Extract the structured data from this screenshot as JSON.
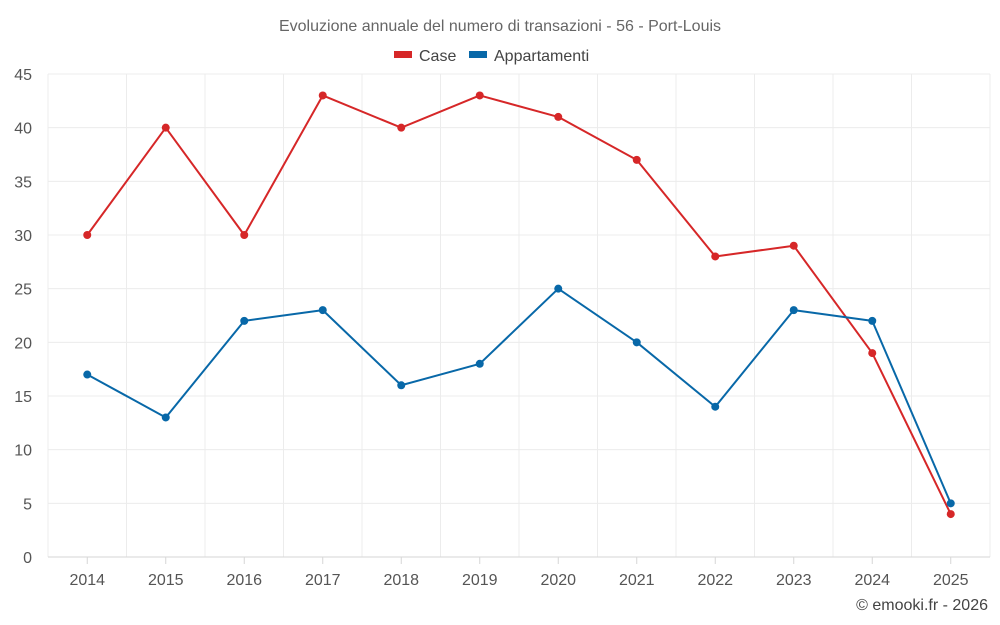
{
  "chart_data": {
    "type": "line",
    "title": "Evoluzione annuale del numero di transazioni - 56 - Port-Louis",
    "xlabel": "",
    "ylabel": "",
    "categories": [
      "2014",
      "2015",
      "2016",
      "2017",
      "2018",
      "2019",
      "2020",
      "2021",
      "2022",
      "2023",
      "2024",
      "2025"
    ],
    "ylim": [
      0,
      45
    ],
    "yticks": [
      0,
      5,
      10,
      15,
      20,
      25,
      30,
      35,
      40,
      45
    ],
    "grid": true,
    "legend_position": "top-center",
    "series": [
      {
        "name": "Case",
        "color": "#d62728",
        "values": [
          30,
          40,
          30,
          43,
          40,
          43,
          41,
          37,
          28,
          29,
          19,
          4
        ]
      },
      {
        "name": "Appartamenti",
        "color": "#0868a8",
        "values": [
          17,
          13,
          22,
          23,
          16,
          18,
          25,
          20,
          14,
          23,
          22,
          5
        ]
      }
    ]
  },
  "credit": "© emooki.fr - 2026"
}
